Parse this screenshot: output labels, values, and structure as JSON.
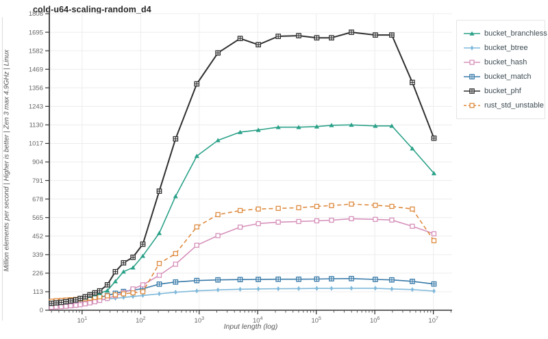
{
  "title": "cold-u64-scaling-random_d4",
  "chart_data": {
    "type": "line",
    "title": "cold-u64-scaling-random_d4",
    "xlabel": "Input length (log)",
    "ylabel": "Million elements per second | Higher is better | Zen 3 max 4.9GHz | Linux",
    "x_scale": "log",
    "x_range_log10": [
      0.44,
      7.32
    ],
    "ylim": [
      0,
      1808
    ],
    "y_ticks": [
      0,
      113,
      226,
      339,
      452,
      565,
      678,
      791,
      904,
      1017,
      1130,
      1243,
      1356,
      1469,
      1582,
      1695,
      1808
    ],
    "x_ticks": [
      10,
      100,
      1000,
      10000,
      100000,
      1000000,
      10000000
    ],
    "grid": true,
    "legend_position": "right",
    "x": [
      3,
      3.6,
      4.4,
      5.3,
      6.4,
      7.8,
      9.3,
      11.3,
      13.6,
      16.5,
      20,
      27,
      37,
      51,
      74,
      109,
      208,
      395,
      910,
      2090,
      5010,
      10230,
      22400,
      50100,
      102000,
      182000,
      398000,
      1020000,
      1950000,
      4370000,
      10230000
    ],
    "series": [
      {
        "name": "bucket_branchless",
        "color": "#2aa188",
        "marker": "triangle",
        "dash": "solid",
        "values": [
          40,
          43,
          46,
          50,
          54,
          60,
          68,
          77,
          87,
          97,
          104,
          120,
          176,
          235,
          260,
          331,
          470,
          695,
          940,
          1036,
          1086,
          1099,
          1116,
          1116,
          1120,
          1128,
          1130,
          1124,
          1124,
          986,
          835
        ]
      },
      {
        "name": "bucket_btree",
        "color": "#7fb9da",
        "marker": "diamond",
        "dash": "solid",
        "values": [
          35,
          37,
          39,
          41,
          44,
          47,
          50,
          54,
          57,
          60,
          63,
          68,
          73,
          78,
          84,
          90,
          100,
          110,
          118,
          124,
          128,
          130,
          131,
          132,
          133,
          133,
          134,
          134,
          130,
          126,
          117
        ]
      },
      {
        "name": "bucket_hash",
        "color": "#d690ba",
        "marker": "square-open",
        "dash": "solid",
        "values": [
          18,
          20,
          22,
          24,
          27,
          30,
          34,
          39,
          45,
          52,
          60,
          72,
          88,
          107,
          130,
          155,
          213,
          281,
          396,
          455,
          507,
          528,
          537,
          541,
          545,
          549,
          558,
          554,
          550,
          512,
          466
        ]
      },
      {
        "name": "bucket_match",
        "color": "#3779a8",
        "marker": "square-cross",
        "dash": "solid",
        "values": [
          40,
          42,
          44,
          46,
          49,
          53,
          57,
          62,
          67,
          73,
          79,
          90,
          103,
          114,
          123,
          131,
          159,
          172,
          181,
          185,
          187,
          188,
          189,
          189,
          190,
          192,
          193,
          188,
          185,
          176,
          160
        ]
      },
      {
        "name": "bucket_phf",
        "color": "#2f2f2f",
        "marker": "square-cross",
        "dash": "solid",
        "values": [
          42,
          45,
          48,
          52,
          57,
          63,
          72,
          82,
          94,
          106,
          118,
          155,
          235,
          289,
          323,
          403,
          726,
          1045,
          1380,
          1569,
          1657,
          1619,
          1670,
          1674,
          1661,
          1661,
          1695,
          1678,
          1678,
          1389,
          1049
        ]
      },
      {
        "name": "rust_std_unstable",
        "color": "#de8a3e",
        "marker": "square-open",
        "dash": "dashed",
        "values": [
          55,
          58,
          60,
          62,
          64,
          66,
          68,
          70,
          74,
          78,
          82,
          88,
          94,
          100,
          106,
          113,
          285,
          345,
          508,
          583,
          608,
          617,
          621,
          625,
          633,
          638,
          647,
          640,
          633,
          617,
          424
        ]
      }
    ]
  }
}
